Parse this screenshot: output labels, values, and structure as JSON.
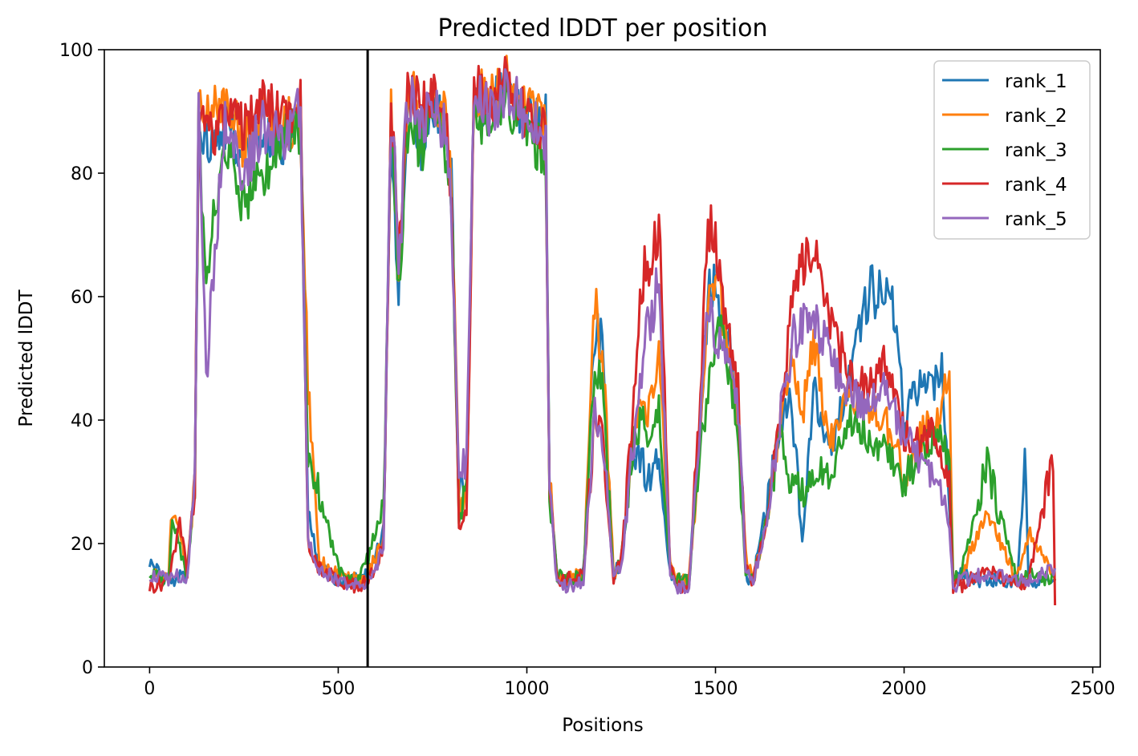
{
  "chart_data": {
    "type": "line",
    "title": "Predicted lDDT per position",
    "xlabel": "Positions",
    "ylabel": "Predicted lDDT",
    "xlim": [
      -120,
      2520
    ],
    "ylim": [
      0,
      100
    ],
    "xticks": [
      0,
      500,
      1000,
      1500,
      2000,
      2500
    ],
    "yticks": [
      0,
      20,
      40,
      60,
      80,
      100
    ],
    "grid": false,
    "legend_position": "top-right",
    "vertical_line_x": 578,
    "series": [
      {
        "name": "rank_1",
        "color": "#1f77b4",
        "x": [
          0,
          50,
          100,
          120,
          130,
          150,
          200,
          250,
          300,
          350,
          400,
          420,
          450,
          500,
          550,
          580,
          600,
          620,
          640,
          650,
          660,
          680,
          700,
          720,
          750,
          780,
          800,
          820,
          840,
          860,
          900,
          950,
          1000,
          1050,
          1060,
          1080,
          1100,
          1150,
          1180,
          1200,
          1230,
          1250,
          1280,
          1300,
          1320,
          1350,
          1380,
          1400,
          1430,
          1460,
          1480,
          1500,
          1530,
          1560,
          1580,
          1600,
          1640,
          1670,
          1700,
          1730,
          1760,
          1800,
          1850,
          1900,
          1950,
          1980,
          2000,
          2050,
          2080,
          2100,
          2120,
          2130,
          2150,
          2200,
          2300,
          2320,
          2330,
          2400
        ],
        "y": [
          17,
          14,
          15,
          30,
          88,
          85,
          88,
          82,
          88,
          85,
          90,
          25,
          16,
          14,
          14,
          15,
          18,
          22,
          88,
          75,
          60,
          88,
          90,
          85,
          90,
          88,
          78,
          28,
          30,
          92,
          90,
          94,
          88,
          90,
          30,
          15,
          14,
          15,
          55,
          52,
          15,
          17,
          35,
          34,
          30,
          33,
          15,
          14,
          14,
          40,
          60,
          62,
          55,
          40,
          15,
          14,
          28,
          38,
          45,
          20,
          45,
          35,
          45,
          60,
          62,
          55,
          40,
          47,
          46,
          48,
          25,
          14,
          15,
          14,
          14,
          33,
          14,
          14
        ]
      },
      {
        "name": "rank_2",
        "color": "#ff7f0e",
        "x": [
          0,
          50,
          60,
          100,
          120,
          130,
          150,
          200,
          250,
          300,
          350,
          400,
          420,
          450,
          500,
          550,
          580,
          600,
          620,
          640,
          650,
          660,
          680,
          700,
          720,
          750,
          780,
          800,
          820,
          840,
          860,
          900,
          950,
          1000,
          1050,
          1060,
          1080,
          1100,
          1150,
          1180,
          1200,
          1230,
          1250,
          1280,
          1300,
          1320,
          1350,
          1380,
          1400,
          1430,
          1460,
          1480,
          1500,
          1530,
          1560,
          1580,
          1600,
          1640,
          1670,
          1700,
          1730,
          1760,
          1800,
          1850,
          1900,
          1950,
          1980,
          2000,
          2050,
          2080,
          2100,
          2120,
          2130,
          2150,
          2220,
          2300,
          2330,
          2400
        ],
        "y": [
          15,
          14,
          27,
          15,
          30,
          90,
          88,
          92,
          85,
          90,
          88,
          88,
          45,
          17,
          15,
          14,
          15,
          18,
          20,
          90,
          80,
          62,
          90,
          93,
          88,
          92,
          90,
          80,
          27,
          28,
          94,
          92,
          96,
          90,
          88,
          30,
          15,
          14,
          15,
          58,
          52,
          15,
          17,
          36,
          45,
          40,
          50,
          16,
          14,
          14,
          38,
          58,
          63,
          55,
          40,
          18,
          14,
          25,
          38,
          50,
          40,
          55,
          35,
          45,
          42,
          40,
          35,
          30,
          38,
          40,
          42,
          48,
          14,
          15,
          25,
          14,
          22,
          14
        ]
      },
      {
        "name": "rank_3",
        "color": "#2ca02c",
        "x": [
          0,
          50,
          60,
          100,
          120,
          130,
          150,
          200,
          250,
          300,
          350,
          400,
          420,
          450,
          500,
          550,
          580,
          600,
          620,
          640,
          650,
          660,
          680,
          700,
          720,
          750,
          780,
          800,
          820,
          840,
          860,
          900,
          950,
          1000,
          1050,
          1060,
          1080,
          1100,
          1150,
          1180,
          1200,
          1230,
          1250,
          1280,
          1300,
          1320,
          1350,
          1380,
          1400,
          1430,
          1460,
          1480,
          1500,
          1530,
          1560,
          1580,
          1600,
          1640,
          1670,
          1700,
          1730,
          1760,
          1800,
          1850,
          1900,
          1950,
          1980,
          2000,
          2050,
          2080,
          2100,
          2120,
          2130,
          2150,
          2220,
          2300,
          2330,
          2400
        ],
        "y": [
          15,
          14,
          24,
          15,
          30,
          88,
          62,
          86,
          75,
          80,
          86,
          86,
          35,
          28,
          16,
          14,
          18,
          22,
          26,
          86,
          76,
          60,
          86,
          88,
          84,
          88,
          86,
          76,
          26,
          28,
          90,
          88,
          92,
          86,
          84,
          28,
          15,
          14,
          15,
          50,
          45,
          15,
          17,
          35,
          40,
          38,
          42,
          15,
          14,
          14,
          35,
          45,
          55,
          50,
          38,
          15,
          14,
          25,
          38,
          30,
          28,
          32,
          30,
          40,
          38,
          35,
          32,
          30,
          35,
          38,
          36,
          34,
          14,
          15,
          33,
          14,
          15,
          14
        ]
      },
      {
        "name": "rank_4",
        "color": "#d62728",
        "x": [
          0,
          50,
          80,
          100,
          120,
          130,
          150,
          200,
          250,
          300,
          350,
          400,
          420,
          450,
          500,
          550,
          580,
          600,
          620,
          640,
          650,
          660,
          680,
          700,
          720,
          750,
          780,
          800,
          820,
          840,
          860,
          900,
          950,
          1000,
          1050,
          1060,
          1080,
          1100,
          1150,
          1180,
          1200,
          1230,
          1250,
          1280,
          1300,
          1320,
          1350,
          1380,
          1400,
          1430,
          1460,
          1480,
          1500,
          1530,
          1560,
          1580,
          1600,
          1640,
          1670,
          1700,
          1730,
          1760,
          1800,
          1850,
          1900,
          1950,
          1980,
          2000,
          2050,
          2080,
          2100,
          2120,
          2130,
          2150,
          2220,
          2300,
          2330,
          2395,
          2400
        ],
        "y": [
          13,
          14,
          23,
          15,
          30,
          92,
          85,
          90,
          88,
          92,
          88,
          92,
          20,
          16,
          14,
          13,
          14,
          16,
          20,
          92,
          82,
          62,
          92,
          94,
          90,
          92,
          90,
          78,
          22,
          26,
          94,
          92,
          95,
          88,
          86,
          30,
          14,
          14,
          15,
          40,
          38,
          14,
          17,
          40,
          62,
          65,
          72,
          16,
          13,
          13,
          45,
          72,
          68,
          55,
          45,
          16,
          14,
          25,
          40,
          58,
          65,
          68,
          55,
          48,
          45,
          50,
          42,
          38,
          36,
          38,
          35,
          30,
          13,
          13,
          16,
          13,
          14,
          34,
          10
        ]
      },
      {
        "name": "rank_5",
        "color": "#9467bd",
        "x": [
          0,
          50,
          80,
          100,
          120,
          130,
          150,
          200,
          250,
          300,
          350,
          400,
          420,
          450,
          500,
          550,
          580,
          600,
          620,
          640,
          650,
          660,
          680,
          700,
          720,
          750,
          780,
          800,
          820,
          840,
          860,
          900,
          950,
          1000,
          1050,
          1060,
          1080,
          1100,
          1150,
          1180,
          1200,
          1230,
          1250,
          1280,
          1300,
          1320,
          1350,
          1380,
          1400,
          1430,
          1460,
          1480,
          1500,
          1530,
          1560,
          1580,
          1600,
          1640,
          1670,
          1700,
          1730,
          1760,
          1800,
          1850,
          1900,
          1950,
          1980,
          2000,
          2050,
          2080,
          2100,
          2120,
          2130,
          2150,
          2220,
          2300,
          2330,
          2400
        ],
        "y": [
          15,
          14,
          15,
          14,
          30,
          90,
          48,
          88,
          80,
          88,
          86,
          90,
          20,
          16,
          14,
          13,
          14,
          16,
          20,
          90,
          80,
          60,
          90,
          92,
          88,
          90,
          88,
          76,
          30,
          34,
          92,
          90,
          94,
          88,
          86,
          28,
          14,
          13,
          14,
          42,
          38,
          14,
          16,
          35,
          45,
          55,
          62,
          15,
          13,
          13,
          40,
          58,
          55,
          50,
          42,
          15,
          14,
          25,
          40,
          52,
          55,
          58,
          50,
          45,
          42,
          45,
          40,
          38,
          32,
          30,
          28,
          22,
          13,
          14,
          15,
          14,
          14,
          16
        ]
      }
    ]
  }
}
